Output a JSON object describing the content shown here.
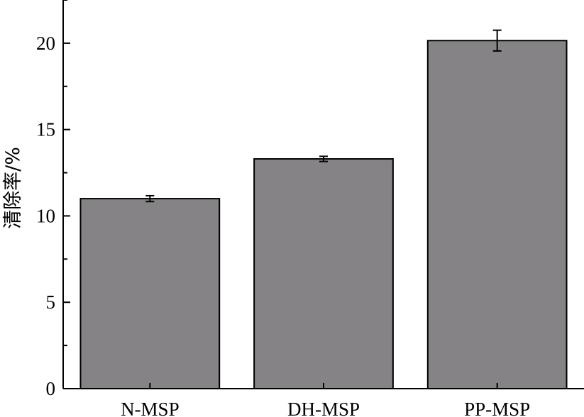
{
  "chart_data": {
    "type": "bar",
    "title": "",
    "xlabel": "",
    "ylabel": "清除率/%",
    "categories": [
      "N-MSP",
      "DH-MSP",
      "PP-MSP"
    ],
    "values": [
      11.0,
      13.3,
      20.15
    ],
    "errors": [
      0.17,
      0.15,
      0.6
    ],
    "ylim": [
      0,
      22.5
    ],
    "yticks": [
      0,
      5,
      10,
      15,
      20
    ],
    "ytick_labels": [
      "0",
      "5",
      "10",
      "15",
      "20"
    ],
    "grid": false,
    "bar_color": "#858385"
  }
}
